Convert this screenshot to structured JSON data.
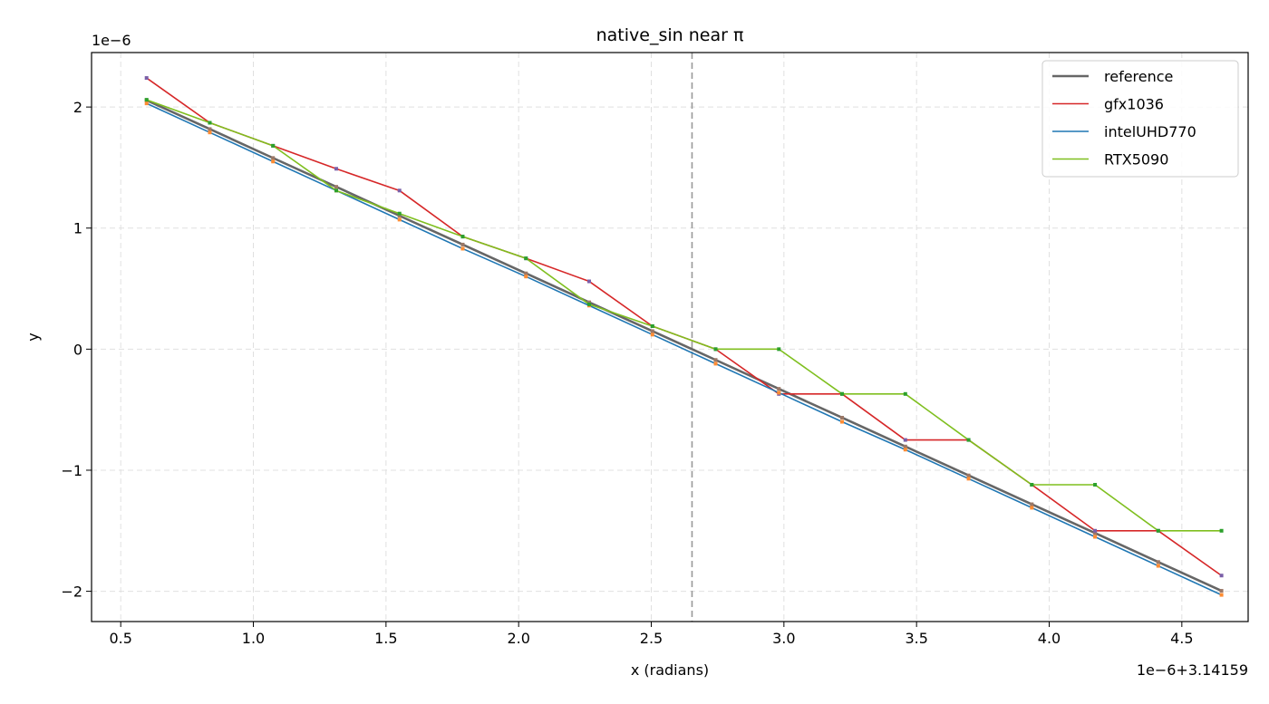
{
  "chart_data": {
    "type": "line",
    "title": "native_sin near π",
    "xlabel": "x (radians)",
    "ylabel": "y",
    "x_offset_label": "1e−6+3.14159",
    "y_offset_label": "1e−6",
    "xlim": [
      0.39,
      4.75
    ],
    "ylim": [
      -2.25,
      2.45
    ],
    "x_ticks": [
      0.5,
      1.0,
      1.5,
      2.0,
      2.5,
      3.0,
      3.5,
      4.0,
      4.5
    ],
    "x_tick_labels": [
      "0.5",
      "1.0",
      "1.5",
      "2.0",
      "2.5",
      "3.0",
      "3.5",
      "4.0",
      "4.5"
    ],
    "y_ticks": [
      -2,
      -1,
      0,
      1,
      2
    ],
    "y_tick_labels": [
      "−2",
      "−1",
      "0",
      "1",
      "2"
    ],
    "grid": true,
    "legend_position": "top-right",
    "vline_x": 2.6536,
    "x": [
      0.5974,
      0.8358,
      1.0741,
      1.3125,
      1.5508,
      1.7892,
      2.0276,
      2.2659,
      2.5043,
      2.7426,
      2.981,
      3.2193,
      3.4577,
      3.6961,
      3.9344,
      4.1728,
      4.4111,
      4.6495
    ],
    "series": [
      {
        "name": "reference",
        "color": "#666666",
        "values": [
          2.056,
          1.818,
          1.579,
          1.341,
          1.102,
          0.864,
          0.626,
          0.387,
          0.149,
          -0.089,
          -0.328,
          -0.566,
          -0.804,
          -1.043,
          -1.281,
          -1.519,
          -1.758,
          -1.996
        ]
      },
      {
        "name": "gfx1036",
        "color": "#d62728",
        "values": [
          2.24,
          1.87,
          1.68,
          1.49,
          1.31,
          0.93,
          0.75,
          0.56,
          0.19,
          0.0,
          -0.37,
          -0.37,
          -0.75,
          -0.75,
          -1.12,
          -1.5,
          -1.5,
          -1.87
        ]
      },
      {
        "name": "intelUHD770",
        "color": "#1f77b4",
        "values": [
          2.03,
          1.79,
          1.55,
          1.31,
          1.07,
          0.83,
          0.6,
          0.36,
          0.12,
          -0.12,
          -0.36,
          -0.6,
          -0.83,
          -1.07,
          -1.31,
          -1.55,
          -1.79,
          -2.03
        ]
      },
      {
        "name": "RTX5090",
        "color": "#7fbf1f",
        "values": [
          2.06,
          1.87,
          1.68,
          1.31,
          1.12,
          0.93,
          0.75,
          0.37,
          0.19,
          0.0,
          0.0,
          -0.37,
          -0.37,
          -0.75,
          -1.12,
          -1.12,
          -1.5,
          -1.5
        ]
      }
    ]
  }
}
